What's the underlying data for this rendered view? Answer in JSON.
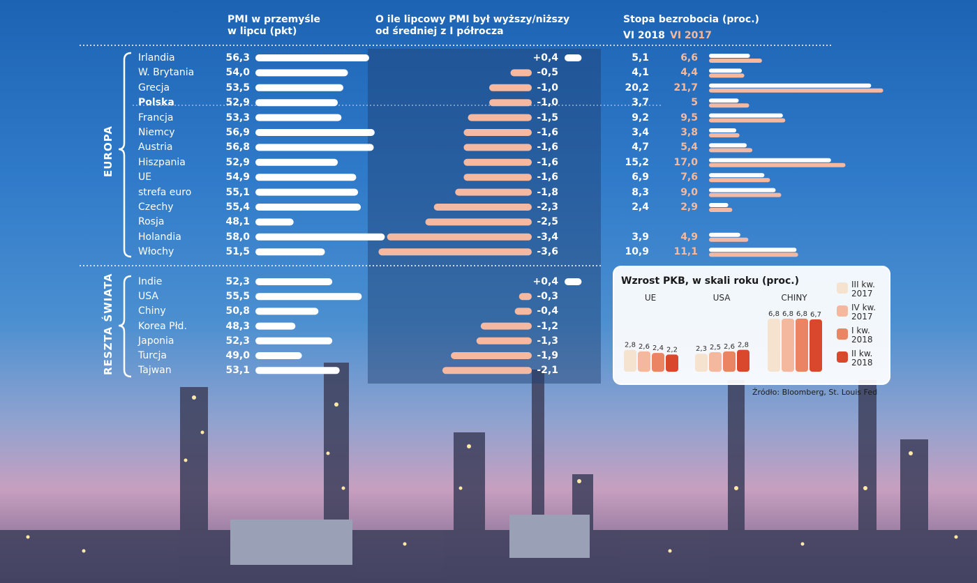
{
  "headers": {
    "pmi": [
      "PMI w przemyśle",
      "w lipcu (pkt)"
    ],
    "diff": [
      "O ile lipcowy PMI był wyższy/niższy",
      "od średniej z I półrocza"
    ],
    "unemp": "Stopa bezrobocia (proc.)",
    "unemp_2018": "VI 2018",
    "unemp_2017": "VI 2017"
  },
  "groups": [
    {
      "label": "EUROPA",
      "first_row": 0,
      "last_row": 13
    },
    {
      "label": "RESZTA ŚWIATA",
      "first_row": 14,
      "last_row": 20
    }
  ],
  "chart_data": [
    {
      "type": "bar",
      "title": "PMI w przemyśle w lipcu (pkt)",
      "categories": [
        "Irlandia",
        "W. Brytania",
        "Grecja",
        "Polska",
        "Francja",
        "Niemcy",
        "Austria",
        "Hiszpania",
        "UE",
        "strefa euro",
        "Czechy",
        "Rosja",
        "Holandia",
        "Włochy",
        "Indie",
        "USA",
        "Chiny",
        "Korea Płd.",
        "Japonia",
        "Turcja",
        "Tajwan"
      ],
      "values": [
        56.3,
        54.0,
        53.5,
        52.9,
        53.3,
        56.9,
        56.8,
        52.9,
        54.9,
        55.1,
        55.4,
        48.1,
        58.0,
        51.5,
        52.3,
        55.5,
        50.8,
        48.3,
        52.3,
        49.0,
        53.1
      ],
      "value_labels": [
        "56,3",
        "54,0",
        "53,5",
        "52,9",
        "53,3",
        "56,9",
        "56,8",
        "52,9",
        "54,9",
        "55,1",
        "55,4",
        "48,1",
        "58,0",
        "51,5",
        "52,3",
        "55,5",
        "50,8",
        "48,3",
        "52,3",
        "49,0",
        "53,1"
      ],
      "highlight": "Polska"
    },
    {
      "type": "bar",
      "title": "O ile lipcowy PMI był wyższy/niższy od średniej z I półrocza",
      "categories": [
        "Irlandia",
        "W. Brytania",
        "Grecja",
        "Polska",
        "Francja",
        "Niemcy",
        "Austria",
        "Hiszpania",
        "UE",
        "strefa euro",
        "Czechy",
        "Rosja",
        "Holandia",
        "Włochy",
        "Indie",
        "USA",
        "Chiny",
        "Korea Płd.",
        "Japonia",
        "Turcja",
        "Tajwan"
      ],
      "values": [
        0.4,
        -0.5,
        -1.0,
        -1.0,
        -1.5,
        -1.6,
        -1.6,
        -1.6,
        -1.6,
        -1.8,
        -2.3,
        -2.5,
        -3.4,
        -3.6,
        0.4,
        -0.3,
        -0.4,
        -1.2,
        -1.3,
        -1.9,
        -2.1
      ],
      "value_labels": [
        "+0,4",
        "-0,5",
        "-1,0",
        "-1,0",
        "-1,5",
        "-1,6",
        "-1,6",
        "-1,6",
        "-1,6",
        "-1,8",
        "-2,3",
        "-2,5",
        "-3,4",
        "-3,6",
        "+0,4",
        "-0,3",
        "-0,4",
        "-1,2",
        "-1,3",
        "-1,9",
        "-2,1"
      ]
    },
    {
      "type": "bar",
      "title": "Stopa bezrobocia (proc.)",
      "categories": [
        "Irlandia",
        "W. Brytania",
        "Grecja",
        "Polska",
        "Francja",
        "Niemcy",
        "Austria",
        "Hiszpania",
        "UE",
        "strefa euro",
        "Czechy",
        "Rosja",
        "Holandia",
        "Włochy"
      ],
      "series": [
        {
          "name": "VI 2018",
          "values": [
            5.1,
            4.1,
            20.2,
            3.7,
            9.2,
            3.4,
            4.7,
            15.2,
            6.9,
            8.3,
            2.4,
            null,
            3.9,
            10.9
          ],
          "labels": [
            "5,1",
            "4,1",
            "20,2",
            "3,7",
            "9,2",
            "3,4",
            "4,7",
            "15,2",
            "6,9",
            "8,3",
            "2,4",
            "",
            "3,9",
            "10,9"
          ]
        },
        {
          "name": "VI 2017",
          "values": [
            6.6,
            4.4,
            21.7,
            5.0,
            9.5,
            3.8,
            5.4,
            17.0,
            7.6,
            9.0,
            2.9,
            null,
            4.9,
            11.1
          ],
          "labels": [
            "6,6",
            "4,4",
            "21,7",
            "5",
            "9,5",
            "3,8",
            "5,4",
            "17,0",
            "7,6",
            "9,0",
            "2,9",
            "",
            "4,9",
            "11,1"
          ]
        }
      ]
    },
    {
      "type": "bar",
      "title": "Wzrost PKB, w skali roku (proc.)",
      "categories": [
        "UE",
        "USA",
        "CHINY"
      ],
      "series": [
        {
          "name": "III kw. 2017",
          "values": [
            2.8,
            2.3,
            6.8
          ],
          "labels": [
            "2,8",
            "2,3",
            "6,8"
          ]
        },
        {
          "name": "IV kw. 2017",
          "values": [
            2.6,
            2.5,
            6.8
          ],
          "labels": [
            "2,6",
            "2,5",
            "6,8"
          ]
        },
        {
          "name": "I kw. 2018",
          "values": [
            2.4,
            2.6,
            6.8
          ],
          "labels": [
            "2,4",
            "2,6",
            "6,8"
          ]
        },
        {
          "name": "II kw. 2018",
          "values": [
            2.2,
            2.8,
            6.7
          ],
          "labels": [
            "2,2",
            "2,8",
            "6,7"
          ]
        }
      ],
      "legend": [
        [
          "III kw.",
          "2017"
        ],
        [
          "IV kw.",
          "2017"
        ],
        [
          "I kw.",
          "2018"
        ],
        [
          "II kw.",
          "2018"
        ]
      ]
    }
  ],
  "colors": {
    "bar_white": "#ffffff",
    "bar_salmon": "#f5b9a2",
    "panel": "#1e3f6e",
    "gdp": [
      "#f6e3cf",
      "#f4b89e",
      "#ea8462",
      "#d9482c"
    ]
  },
  "source": "Źródło: Bloomberg, St. Louis Fed"
}
